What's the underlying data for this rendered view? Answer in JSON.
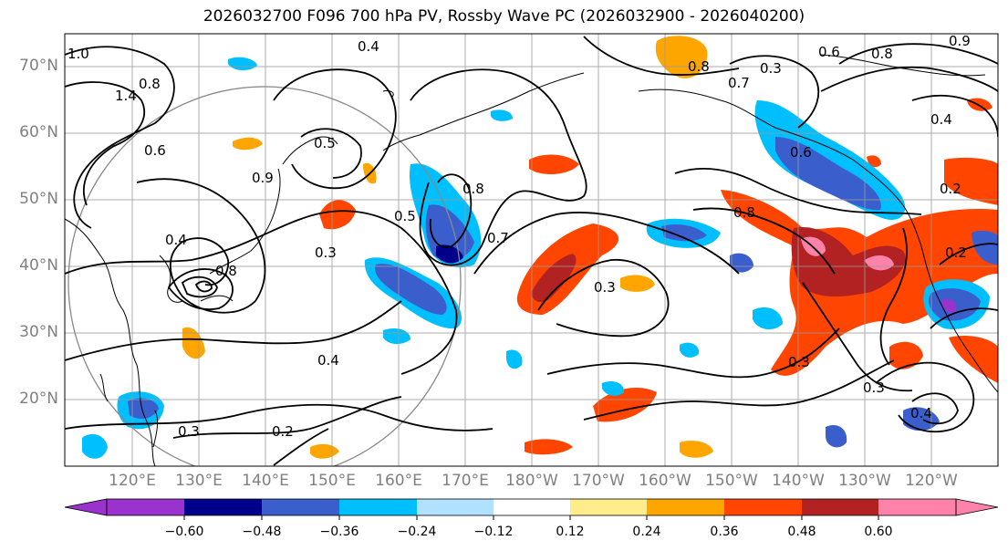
{
  "title": "2026032700 F096 700 hPa PV, Rossby Wave PC (2026032900 - 2026040200)",
  "lat_labels": [
    "70°N",
    "60°N",
    "50°N",
    "40°N",
    "30°N",
    "20°N"
  ],
  "lon_labels": [
    "120°E",
    "130°E",
    "140°E",
    "150°E",
    "160°E",
    "170°E",
    "180°W",
    "170°W",
    "160°W",
    "150°W",
    "140°W",
    "130°W",
    "120°W"
  ],
  "colorbar": {
    "colors": [
      "#9a32cd",
      "#00008b",
      "#3a5fcd",
      "#00bfff",
      "#b0e2ff",
      "#ffffff",
      "#ffec8b",
      "#ffa500",
      "#ff4500",
      "#b22222",
      "#ff82ab"
    ],
    "tick_labels": [
      "−0.60",
      "−0.48",
      "−0.36",
      "−0.24",
      "−0.12",
      "0.12",
      "0.24",
      "0.36",
      "0.48",
      "0.60"
    ]
  },
  "contour_labels": [
    "0.4",
    "1.0",
    "1.4",
    "0.8",
    "0.6",
    "0.5",
    "0.9",
    "0.8",
    "0.4",
    "0.3",
    "0.5",
    "0.8",
    "0.7",
    "0.3",
    "0.4",
    "0.2",
    "0.3",
    "0.6",
    "0.8",
    "0.8",
    "0.3",
    "0.6",
    "0.7",
    "0.9",
    "0.8",
    "0.4",
    "0.2",
    "0.3",
    "0.2",
    "0.4",
    "0.3"
  ],
  "map": {
    "domain": {
      "lon_west": "110°E",
      "lon_east": "115°W",
      "lat_south": "10°N",
      "lat_north": "75°N"
    },
    "gridlines": true,
    "circle_overlay": "gray"
  }
}
